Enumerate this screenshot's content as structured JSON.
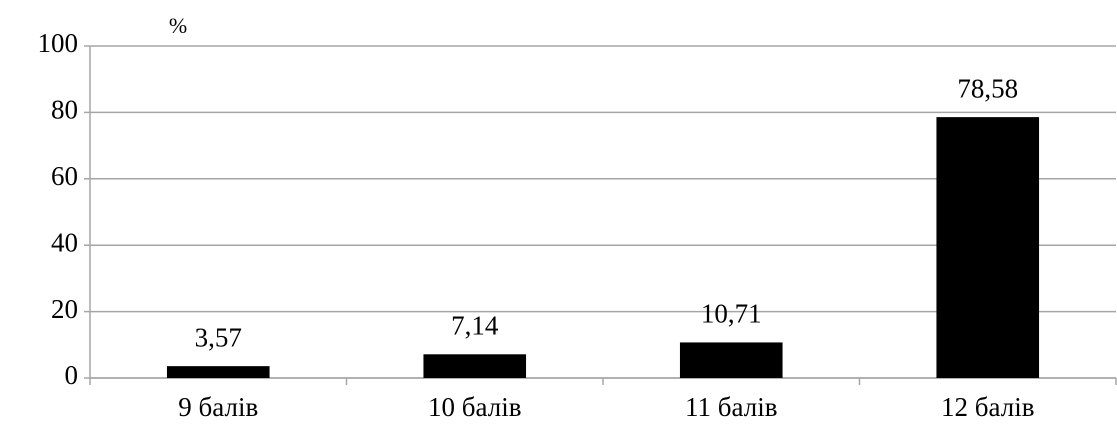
{
  "chart_data": {
    "type": "bar",
    "y_label": "%",
    "categories": [
      "9 балів",
      "10 балів",
      "11 балів",
      "12 балів"
    ],
    "values": [
      3.57,
      7.14,
      10.71,
      78.58
    ],
    "value_labels": [
      "3,57",
      "7,14",
      "10,71",
      "78,58"
    ],
    "color": "#000000",
    "ylim": [
      0,
      100
    ],
    "yticks": [
      0,
      20,
      40,
      60,
      80,
      100
    ],
    "grid": true
  }
}
